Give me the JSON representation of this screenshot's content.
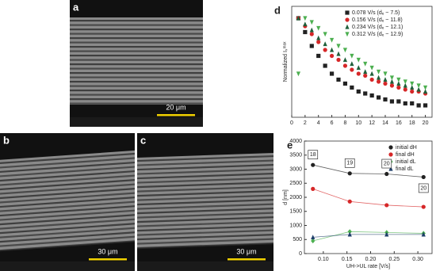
{
  "panels": [
    {
      "label": "a",
      "scale_bar": "20 μm"
    },
    {
      "label": "b",
      "scale_bar": "30 μm"
    },
    {
      "label": "c",
      "scale_bar": "30 μm"
    }
  ],
  "chart_data": [
    {
      "type": "scatter",
      "panel_label": "d",
      "y_label": "Normalized Iₛᵐᵃˣ",
      "x": [
        1,
        2,
        3,
        4,
        5,
        6,
        7,
        8,
        9,
        10,
        11,
        12,
        13,
        14,
        15,
        16,
        17,
        18,
        19,
        20
      ],
      "xlim": [
        0,
        21
      ],
      "xticks": [
        0,
        2,
        4,
        6,
        8,
        10,
        12,
        14,
        16,
        18,
        20
      ],
      "ylim": [
        0.5,
        1.06
      ],
      "legend": "upper right",
      "series": [
        {
          "name": "0.078 V/s (dₑ ~ 7.5)",
          "color": "#222222",
          "marker": "square",
          "values": [
            1.0,
            0.93,
            0.86,
            0.81,
            0.76,
            0.72,
            0.69,
            0.67,
            0.65,
            0.63,
            0.62,
            0.61,
            0.6,
            0.59,
            0.58,
            0.58,
            0.57,
            0.57,
            0.56,
            0.56
          ]
        },
        {
          "name": "0.156 V/s (dₑ ~ 11.8)",
          "color": "#d62728",
          "marker": "circle",
          "values": [
            1.0,
            0.96,
            0.92,
            0.88,
            0.84,
            0.81,
            0.79,
            0.76,
            0.74,
            0.72,
            0.71,
            0.69,
            0.68,
            0.67,
            0.66,
            0.65,
            0.64,
            0.63,
            0.63,
            0.62
          ]
        },
        {
          "name": "0.234 V/s (dₑ ~ 12.1)",
          "color": "#1f5f3a",
          "marker": "triangle",
          "values": [
            1.0,
            0.97,
            0.94,
            0.9,
            0.87,
            0.84,
            0.82,
            0.79,
            0.77,
            0.75,
            0.73,
            0.72,
            0.7,
            0.69,
            0.68,
            0.67,
            0.66,
            0.65,
            0.64,
            0.63
          ]
        },
        {
          "name": "0.312 V/s (dₑ ~ 12.9)",
          "color": "#4caf50",
          "marker": "dtriangle",
          "values": [
            0.72,
            1.0,
            0.98,
            0.95,
            0.92,
            0.89,
            0.86,
            0.84,
            0.81,
            0.79,
            0.77,
            0.75,
            0.73,
            0.72,
            0.7,
            0.69,
            0.68,
            0.67,
            0.66,
            0.65
          ]
        }
      ]
    },
    {
      "type": "line",
      "panel_label": "e",
      "x_label": "UH->UL rate [V/s]",
      "y_label": "d [nm]",
      "x": [
        0.078,
        0.156,
        0.234,
        0.312
      ],
      "xlim": [
        0.06,
        0.33
      ],
      "xticks": [
        {
          "value": 0.1,
          "label": "0.10"
        },
        {
          "value": 0.15,
          "label": "0.15"
        },
        {
          "value": 0.2,
          "label": "0.20"
        },
        {
          "value": 0.25,
          "label": "0.25"
        },
        {
          "value": 0.3,
          "label": "0.30"
        }
      ],
      "ylim": [
        0,
        4000
      ],
      "yticks": [
        0,
        500,
        1000,
        1500,
        2000,
        2500,
        3000,
        3500,
        4000
      ],
      "legend": "upper right",
      "series": [
        {
          "name": "initial dH",
          "color": "#222222",
          "marker": "circle",
          "values": [
            3150,
            2850,
            2830,
            2720
          ]
        },
        {
          "name": "final dH",
          "color": "#d62728",
          "marker": "circle",
          "values": [
            2300,
            1850,
            1720,
            1660
          ]
        },
        {
          "name": "initial dL",
          "color": "#4caf50",
          "marker": "diamond",
          "values": [
            450,
            780,
            750,
            720
          ]
        },
        {
          "name": "final dL",
          "color": "#1f3f6a",
          "marker": "triangle",
          "values": [
            580,
            680,
            680,
            680
          ]
        }
      ],
      "annotations": [
        "18",
        "19",
        "20",
        "20"
      ]
    }
  ]
}
